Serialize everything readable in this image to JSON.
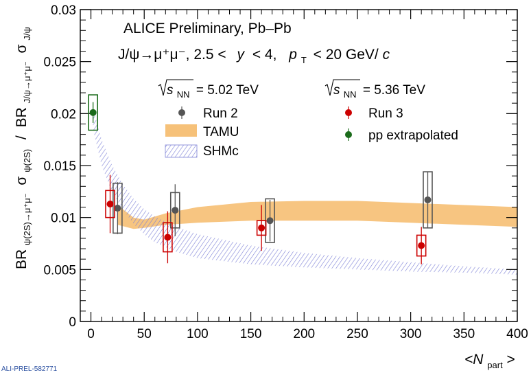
{
  "chart_data": {
    "type": "scatter",
    "header_line1": "ALICE Preliminary, Pb–Pb",
    "header_line2": {
      "decay": "J/ψ→μ⁺μ⁻, 2.5 <",
      "y_var": "y",
      "y_upper": "< 4,",
      "pt_var": "p",
      "pt_sub": "T",
      "pt_cut": "< 20 GeV/",
      "pt_unit": "c"
    },
    "energy_left": {
      "label": "s",
      "sub": "NN",
      "value": "= 5.02 TeV"
    },
    "energy_right": {
      "label": "s",
      "sub": "NN",
      "value": "= 5.36 TeV"
    },
    "xaxis": {
      "var": "<N",
      "sub": "part",
      "close": ">",
      "range": [
        -10,
        400
      ],
      "ticks": [
        0,
        50,
        100,
        150,
        200,
        250,
        300,
        350,
        400
      ]
    },
    "yaxis": {
      "range": [
        0,
        0.03
      ],
      "ticks": [
        0,
        0.005,
        0.01,
        0.015,
        0.02,
        0.025,
        0.03
      ],
      "tick_labels": [
        "0",
        "0.005",
        "0.01",
        "0.015",
        "0.02",
        "0.025",
        "0.03"
      ],
      "num_br": "BR",
      "num_br_sub": "ψ(2S)→μ⁺μ⁻",
      "num_sigma": "σ",
      "num_sigma_sub": "ψ(2S)",
      "slash": "/",
      "den_br": "BR",
      "den_br_sub": "J/ψ→μ⁺μ⁻",
      "den_sigma": "σ",
      "den_sigma_sub": "J/ψ"
    },
    "series": [
      {
        "name": "Run 2",
        "color": "#555555",
        "points": [
          {
            "x": 25,
            "y": 0.0109,
            "stat": 0.0025,
            "syst": 0.0024
          },
          {
            "x": 79,
            "y": 0.0107,
            "stat": 0.0025,
            "syst": 0.0017
          },
          {
            "x": 168,
            "y": 0.0097,
            "stat": 0.002,
            "syst": 0.0021
          },
          {
            "x": 316,
            "y": 0.0117,
            "stat": 0.0027,
            "syst": 0.0027
          }
        ]
      },
      {
        "name": "Run 3",
        "color": "#cc0000",
        "points": [
          {
            "x": 18,
            "y": 0.0113,
            "stat": 0.0028,
            "syst": 0.0013
          },
          {
            "x": 72,
            "y": 0.0081,
            "stat": 0.0025,
            "syst": 0.0014
          },
          {
            "x": 160,
            "y": 0.009,
            "stat": 0.0022,
            "syst": 0.0007
          },
          {
            "x": 310,
            "y": 0.0073,
            "stat": 0.0018,
            "syst": 0.001
          }
        ]
      },
      {
        "name": "pp extrapolated",
        "color": "#1a6b1a",
        "points": [
          {
            "x": 2,
            "y": 0.0201,
            "stat": 0.001,
            "syst": 0.0017
          }
        ]
      }
    ],
    "bands": [
      {
        "name": "TAMU",
        "color": "#f5b661",
        "x": [
          25,
          40,
          50,
          70,
          100,
          150,
          200,
          250,
          300,
          350,
          400
        ],
        "low": [
          0.0093,
          0.0089,
          0.009,
          0.0093,
          0.0095,
          0.0097,
          0.0097,
          0.0097,
          0.0095,
          0.0093,
          0.0091
        ],
        "high": [
          0.0112,
          0.01,
          0.0098,
          0.0104,
          0.011,
          0.0115,
          0.0116,
          0.0116,
          0.0114,
          0.0112,
          0.011
        ]
      },
      {
        "name": "SHMc",
        "color": "#7b7fd6",
        "x": [
          2,
          10,
          20,
          30,
          40,
          50,
          60,
          80,
          100,
          150,
          200,
          250,
          300,
          350,
          400
        ],
        "low": [
          0.0185,
          0.015,
          0.0124,
          0.0108,
          0.0094,
          0.0084,
          0.0076,
          0.0067,
          0.0061,
          0.0055,
          0.0052,
          0.005,
          0.0048,
          0.0047,
          0.0045
        ],
        "high": [
          0.0205,
          0.0175,
          0.015,
          0.0132,
          0.0118,
          0.0108,
          0.0101,
          0.0091,
          0.0084,
          0.0073,
          0.0066,
          0.0061,
          0.0057,
          0.0053,
          0.005
        ]
      }
    ],
    "footer": "ALI-PREL-582771"
  }
}
